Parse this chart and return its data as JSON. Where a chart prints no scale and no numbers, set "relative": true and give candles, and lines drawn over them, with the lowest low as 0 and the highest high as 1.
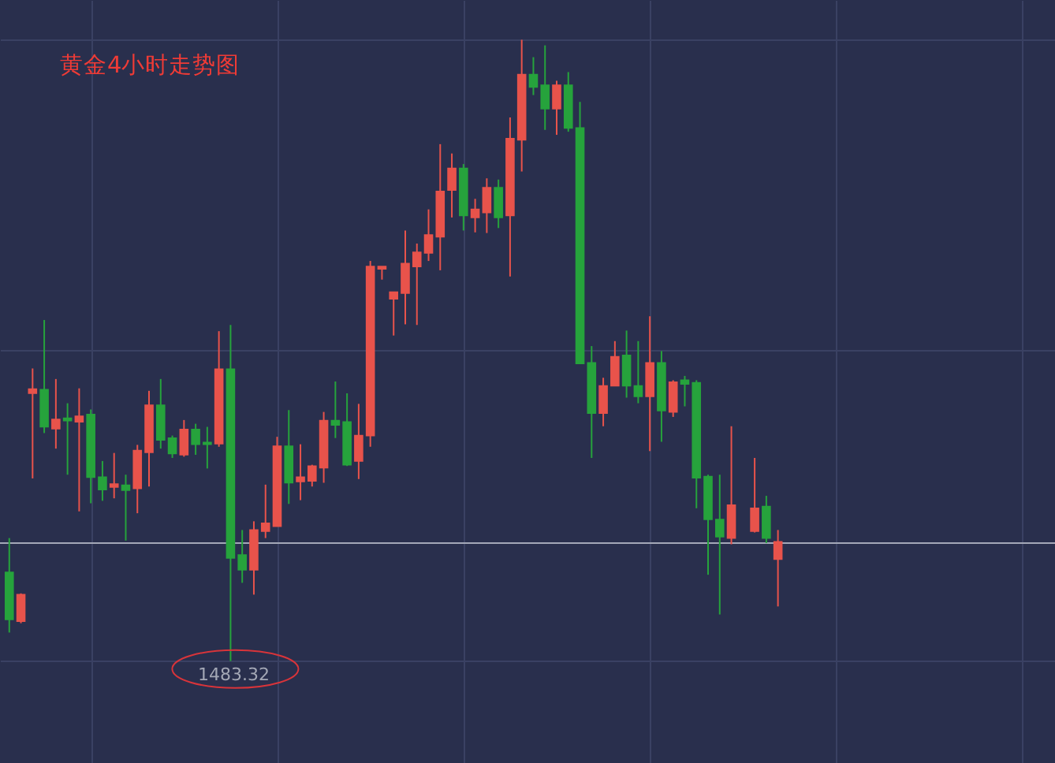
{
  "chart_data": {
    "type": "candlestick",
    "title": "黄金4小时走势图",
    "relative": true,
    "categories": [
      null,
      null,
      null,
      null,
      null,
      null,
      null,
      null,
      null,
      null,
      null,
      null,
      null,
      null,
      null,
      null,
      null,
      null,
      null,
      null,
      null,
      null,
      null,
      null,
      null,
      null,
      null,
      null,
      null,
      null,
      null,
      null,
      null,
      null,
      null,
      null,
      null,
      null,
      null,
      null,
      null,
      null,
      null,
      null,
      null,
      null,
      null,
      null,
      null,
      null,
      null,
      null,
      null,
      null,
      null,
      null,
      null,
      null,
      null,
      null,
      null,
      null,
      null,
      null,
      null,
      null,
      null
    ],
    "ohlc": [
      [
        0.143,
        0.198,
        0.046,
        0.067
      ],
      [
        0.064,
        0.109,
        0.061,
        0.107
      ],
      [
        0.431,
        0.471,
        0.294,
        0.438
      ],
      [
        0.437,
        0.549,
        0.367,
        0.377
      ],
      [
        0.374,
        0.454,
        0.342,
        0.389
      ],
      [
        0.391,
        0.415,
        0.3,
        0.387
      ],
      [
        0.385,
        0.439,
        0.241,
        0.394
      ],
      [
        0.397,
        0.405,
        0.254,
        0.296
      ],
      [
        0.296,
        0.322,
        0.258,
        0.276
      ],
      [
        0.28,
        0.335,
        0.262,
        0.285
      ],
      [
        0.283,
        0.3,
        0.194,
        0.275
      ],
      [
        0.278,
        0.348,
        0.238,
        0.339
      ],
      [
        0.336,
        0.435,
        0.281,
        0.412
      ],
      [
        0.412,
        0.454,
        0.342,
        0.356
      ],
      [
        0.359,
        0.363,
        0.327,
        0.334
      ],
      [
        0.332,
        0.388,
        0.329,
        0.373
      ],
      [
        0.373,
        0.382,
        0.332,
        0.349
      ],
      [
        0.352,
        0.377,
        0.31,
        0.349
      ],
      [
        0.35,
        0.531,
        0.345,
        0.47
      ],
      [
        0.47,
        0.541,
        0,
        0.166
      ],
      [
        0.171,
        0.211,
        0.126,
        0.147
      ],
      [
        0.147,
        0.225,
        0.107,
        0.211
      ],
      [
        0.209,
        0.284,
        0.198,
        0.222
      ],
      [
        0.217,
        0.361,
        0.217,
        0.346
      ],
      [
        0.346,
        0.404,
        0.253,
        0.287
      ],
      [
        0.289,
        0.349,
        0.259,
        0.296
      ],
      [
        0.29,
        0.316,
        0.281,
        0.314
      ],
      [
        0.311,
        0.401,
        0.287,
        0.387
      ],
      [
        0.387,
        0.45,
        0.359,
        0.38
      ],
      [
        0.385,
        0.431,
        0.314,
        0.316
      ],
      [
        0.322,
        0.414,
        0.293,
        0.363
      ],
      [
        0.363,
        0.644,
        0.345,
        0.635
      ],
      [
        0.631,
        0.635,
        0.614,
        0.635
      ],
      [
        0.583,
        0.594,
        0.524,
        0.594
      ],
      [
        0.592,
        0.693,
        0.542,
        0.64
      ],
      [
        0.635,
        0.672,
        0.541,
        0.658
      ],
      [
        0.657,
        0.727,
        0.644,
        0.686
      ],
      [
        0.683,
        0.832,
        0.629,
        0.756
      ],
      [
        0.758,
        0.817,
        0.714,
        0.793
      ],
      [
        0.793,
        0.8,
        0.693,
        0.717
      ],
      [
        0.714,
        0.744,
        0.69,
        0.727
      ],
      [
        0.722,
        0.777,
        0.689,
        0.762
      ],
      [
        0.762,
        0.775,
        0.697,
        0.714
      ],
      [
        0.717,
        0.875,
        0.619,
        0.841
      ],
      [
        0.839,
        1,
        0.788,
        0.944
      ],
      [
        0.944,
        0.972,
        0.911,
        0.924
      ],
      [
        0.927,
        0.991,
        0.855,
        0.889
      ],
      [
        0.889,
        0.934,
        0.847,
        0.927
      ],
      [
        0.927,
        0.948,
        0.852,
        0.858
      ],
      [
        0.858,
        0.9,
        0.479,
        0.479
      ],
      [
        0.48,
        0.507,
        0.327,
        0.399
      ],
      [
        0.399,
        0.456,
        0.378,
        0.443
      ],
      [
        0.443,
        0.515,
        0.443,
        0.49
      ],
      [
        0.492,
        0.532,
        0.424,
        0.443
      ],
      [
        0.443,
        0.515,
        0.415,
        0.426
      ],
      [
        0.426,
        0.555,
        0.338,
        0.48
      ],
      [
        0.48,
        0.499,
        0.353,
        0.403
      ],
      [
        0.401,
        0.452,
        0.393,
        0.449
      ],
      [
        0.452,
        0.459,
        0.41,
        0.446
      ],
      [
        0.448,
        0.452,
        0.246,
        0.295
      ],
      [
        0.297,
        0.3,
        0.139,
        0.228
      ],
      [
        0.228,
        0.3,
        0.075,
        0.2
      ],
      [
        0.198,
        0.378,
        0.188,
        0.251
      ],
      null,
      [
        0.209,
        0.327,
        0.207,
        0.246
      ],
      [
        0.249,
        0.266,
        0.19,
        0.198
      ],
      [
        0.164,
        0.211,
        0.088,
        0.192
      ]
    ],
    "colors": [
      "#26a33c",
      "#e8534b",
      "#e8534b",
      "#26a33c",
      "#e8534b",
      "#26a33c",
      "#e8534b",
      "#26a33c",
      "#26a33c",
      "#e8534b",
      "#26a33c",
      "#e8534b",
      "#e8534b",
      "#26a33c",
      "#26a33c",
      "#e8534b",
      "#26a33c",
      "#26a33c",
      "#e8534b",
      "#26a33c",
      "#26a33c",
      "#e8534b",
      "#e8534b",
      "#e8534b",
      "#26a33c",
      "#e8534b",
      "#e8534b",
      "#e8534b",
      "#26a33c",
      "#26a33c",
      "#e8534b",
      "#e8534b",
      "#e8534b",
      "#e8534b",
      "#e8534b",
      "#e8534b",
      "#e8534b",
      "#e8534b",
      "#e8534b",
      "#26a33c",
      "#e8534b",
      "#e8534b",
      "#26a33c",
      "#e8534b",
      "#e8534b",
      "#26a33c",
      "#26a33c",
      "#e8534b",
      "#26a33c",
      "#26a33c",
      "#26a33c",
      "#e8534b",
      "#e8534b",
      "#26a33c",
      "#26a33c",
      "#e8534b",
      "#26a33c",
      "#e8534b",
      "#26a33c",
      "#26a33c",
      "#26a33c",
      "#26a33c",
      "#e8534b",
      null,
      "#e8534b",
      "#26a33c",
      "#e8534b"
    ],
    "ref_lines": [
      {
        "axis": "y",
        "value": 0.19,
        "color": "#a4a8b8"
      }
    ],
    "annotations": [
      {
        "text": "1483.32",
        "y": 0
      }
    ],
    "grid": true,
    "tick_labels": false
  }
}
